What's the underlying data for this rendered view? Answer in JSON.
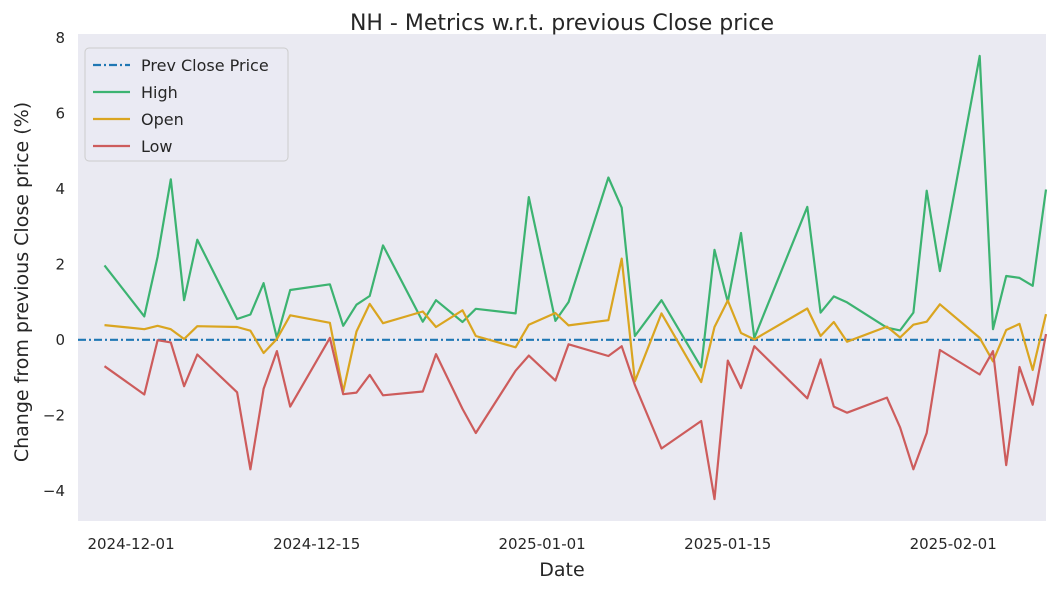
{
  "chart_data": {
    "type": "line",
    "title": "NH - Metrics w.r.t. previous Close price",
    "xlabel": "Date",
    "ylabel": "Change from previous Close price (%)",
    "xlim": [
      "2024-11-27",
      "2025-02-08"
    ],
    "ylim": [
      -4.8,
      8.1
    ],
    "x_ticks": [
      {
        "value": "2024-12-01",
        "label": "2024-12-01"
      },
      {
        "value": "2024-12-15",
        "label": "2024-12-15"
      },
      {
        "value": "2025-01-01",
        "label": "2025-01-01"
      },
      {
        "value": "2025-01-15",
        "label": "2025-01-15"
      },
      {
        "value": "2025-02-01",
        "label": "2025-02-01"
      }
    ],
    "y_ticks": [
      {
        "value": -4,
        "label": "−4"
      },
      {
        "value": -2,
        "label": "−2"
      },
      {
        "value": 0,
        "label": "0"
      },
      {
        "value": 2,
        "label": "2"
      },
      {
        "value": 4,
        "label": "4"
      },
      {
        "value": 6,
        "label": "6"
      },
      {
        "value": 8,
        "label": "8"
      }
    ],
    "grid": false,
    "legend_position": "top-left",
    "background": "#eaeaf2",
    "x": [
      "2024-11-29",
      "2024-12-02",
      "2024-12-03",
      "2024-12-04",
      "2024-12-05",
      "2024-12-06",
      "2024-12-09",
      "2024-12-10",
      "2024-12-11",
      "2024-12-12",
      "2024-12-13",
      "2024-12-16",
      "2024-12-17",
      "2024-12-18",
      "2024-12-19",
      "2024-12-20",
      "2024-12-23",
      "2024-12-24",
      "2024-12-26",
      "2024-12-27",
      "2024-12-30",
      "2024-12-31",
      "2025-01-02",
      "2025-01-03",
      "2025-01-06",
      "2025-01-07",
      "2025-01-08",
      "2025-01-10",
      "2025-01-13",
      "2025-01-14",
      "2025-01-15",
      "2025-01-16",
      "2025-01-17",
      "2025-01-21",
      "2025-01-22",
      "2025-01-23",
      "2025-01-24",
      "2025-01-27",
      "2025-01-28",
      "2025-01-29",
      "2025-01-30",
      "2025-01-31",
      "2025-02-03",
      "2025-02-04",
      "2025-02-05",
      "2025-02-06",
      "2025-02-07"
    ],
    "series": [
      {
        "name": "Prev Close Price",
        "color": "#1f77b4",
        "style": "dashdot",
        "constant": 0
      },
      {
        "name": "High",
        "color": "#3cb371",
        "style": "solid",
        "values": [
          1.97,
          0.62,
          2.2,
          4.25,
          1.05,
          2.65,
          0.55,
          0.67,
          1.5,
          0.05,
          1.32,
          1.47,
          0.37,
          0.93,
          1.16,
          2.5,
          0.48,
          1.05,
          0.47,
          0.82,
          0.7,
          3.78,
          0.5,
          1.0,
          4.3,
          3.5,
          0.1,
          1.05,
          -0.73,
          2.38,
          1.0,
          2.83,
          0.05,
          3.52,
          0.72,
          1.15,
          0.99,
          0.32,
          0.25,
          0.72,
          3.95,
          1.82,
          7.52,
          0.28,
          1.69,
          1.64,
          1.43
        ]
      },
      {
        "name": "Open",
        "color": "#daa520",
        "style": "solid",
        "values": [
          0.39,
          0.28,
          0.37,
          0.28,
          0.02,
          0.36,
          0.34,
          0.24,
          -0.35,
          0.02,
          0.65,
          0.45,
          -1.37,
          0.22,
          0.95,
          0.44,
          0.75,
          0.34,
          0.78,
          0.1,
          -0.2,
          0.4,
          0.71,
          0.38,
          0.52,
          2.15,
          -1.1,
          0.7,
          -1.12,
          0.34,
          1.04,
          0.18,
          0.01,
          0.83,
          0.1,
          0.47,
          -0.05,
          0.35,
          0.06,
          0.4,
          0.48,
          0.94,
          0.05,
          -0.57,
          0.26,
          0.42,
          -0.8
        ]
      },
      {
        "name": "Low",
        "color": "#cd5c5c",
        "style": "solid",
        "values": [
          -0.7,
          -1.45,
          -0.01,
          -0.07,
          -1.23,
          -0.39,
          -1.39,
          -3.43,
          -1.3,
          -0.3,
          -1.77,
          0.05,
          -1.44,
          -1.4,
          -0.93,
          -1.47,
          -1.37,
          -0.38,
          -1.83,
          -2.47,
          -0.82,
          -0.42,
          -1.08,
          -0.12,
          -0.43,
          -0.17,
          -1.2,
          -2.88,
          -2.15,
          -4.22,
          -0.55,
          -1.28,
          -0.17,
          -1.55,
          -0.52,
          -1.77,
          -1.93,
          -1.53,
          -2.32,
          -3.43,
          -2.47,
          -0.27,
          -0.92,
          -0.3,
          -3.32,
          -0.72,
          -1.72
        ]
      }
    ],
    "series_tail": {
      "x": [
        "2025-02-08"
      ],
      "high": [
        3.98
      ],
      "open": [
        0.68
      ],
      "low": [
        0.15
      ]
    }
  }
}
